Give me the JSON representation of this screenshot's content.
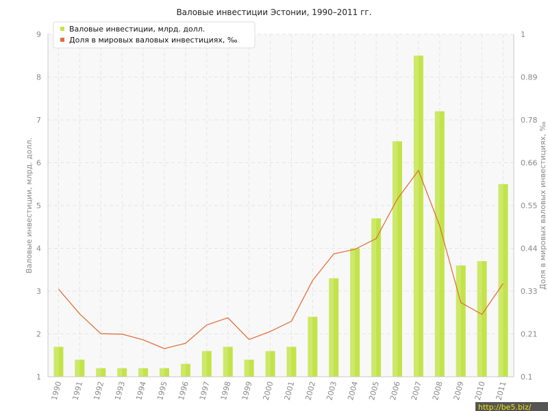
{
  "chart_data": {
    "type": "bar",
    "title": "Валовые инвестиции Эстонии, 1990–2011 гг.",
    "categories": [
      "1990",
      "1991",
      "1992",
      "1993",
      "1994",
      "1995",
      "1996",
      "1997",
      "1998",
      "1999",
      "2000",
      "2001",
      "2002",
      "2003",
      "2004",
      "2005",
      "2006",
      "2007",
      "2008",
      "2009",
      "2010",
      "2011"
    ],
    "series": [
      {
        "name": "Валовые инвестиции, млрд. долл.",
        "type": "bar",
        "axis": "left",
        "color": "#c3e34a",
        "values": [
          1.7,
          1.4,
          1.2,
          1.2,
          1.2,
          1.2,
          1.3,
          1.6,
          1.7,
          1.4,
          1.6,
          1.7,
          2.4,
          3.3,
          4.0,
          4.7,
          6.5,
          8.5,
          7.2,
          3.6,
          3.7,
          5.5
        ]
      },
      {
        "name": "Доля в мировых валовых инвестициях, ‰",
        "type": "line",
        "axis": "right",
        "color": "#e0703a",
        "values": [
          0.33,
          0.265,
          0.213,
          0.212,
          0.197,
          0.174,
          0.188,
          0.236,
          0.255,
          0.198,
          0.219,
          0.246,
          0.353,
          0.423,
          0.435,
          0.463,
          0.567,
          0.642,
          0.497,
          0.295,
          0.264,
          0.345
        ]
      }
    ],
    "ylabel": "Валовые инвестиции, млрд. долл.",
    "ylabel_right": "Доля в мировых валовых инвестициях, ‰",
    "ylim": [
      1,
      9
    ],
    "ylim_right": [
      0.1,
      1
    ],
    "yticks": [
      "1",
      "2",
      "3",
      "4",
      "5",
      "6",
      "7",
      "8",
      "9"
    ],
    "yticks_right": [
      "0.1",
      "0.21",
      "0.33",
      "0.44",
      "0.55",
      "0.66",
      "0.78",
      "0.89",
      "1"
    ],
    "grid": true,
    "legend_position": "top-left"
  },
  "watermark": "http://be5.biz/"
}
